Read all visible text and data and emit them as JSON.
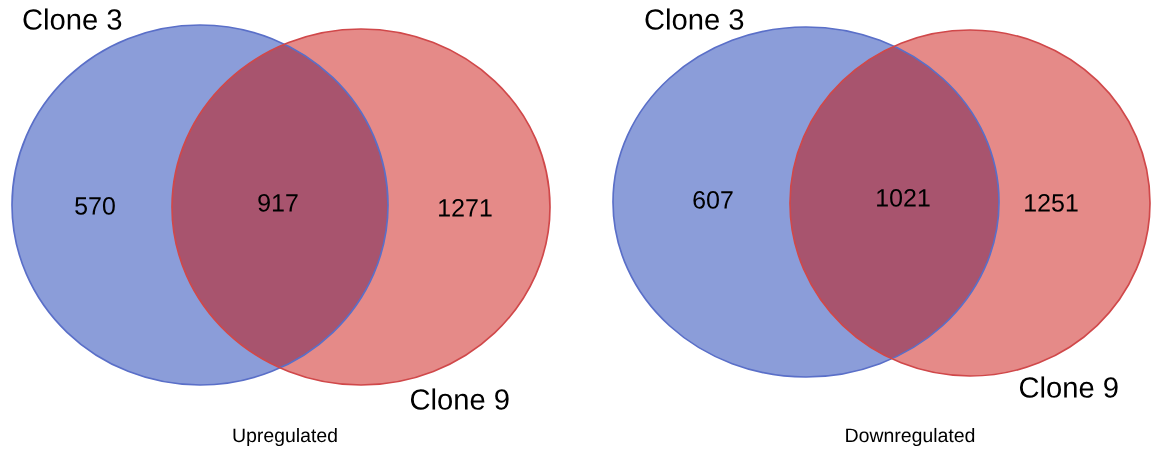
{
  "chart_data": [
    {
      "type": "other",
      "title": "Upregulated",
      "categories": [
        null,
        null,
        null
      ],
      "values": [
        570,
        917,
        1271
      ],
      "data_labels": true,
      "colors": [
        "#8b9dd9",
        "#a8546e",
        "#e58a88"
      ],
      "annotations": [
        "Clone 3",
        "Clone 9"
      ]
    },
    {
      "type": "other",
      "title": "Downregulated",
      "categories": [
        null,
        null,
        null
      ],
      "values": [
        607,
        1021,
        1251
      ],
      "data_labels": true,
      "colors": [
        "#8b9dd9",
        "#a8546e",
        "#e58a88"
      ],
      "annotations": [
        "Clone 3",
        "Clone 9"
      ]
    }
  ]
}
